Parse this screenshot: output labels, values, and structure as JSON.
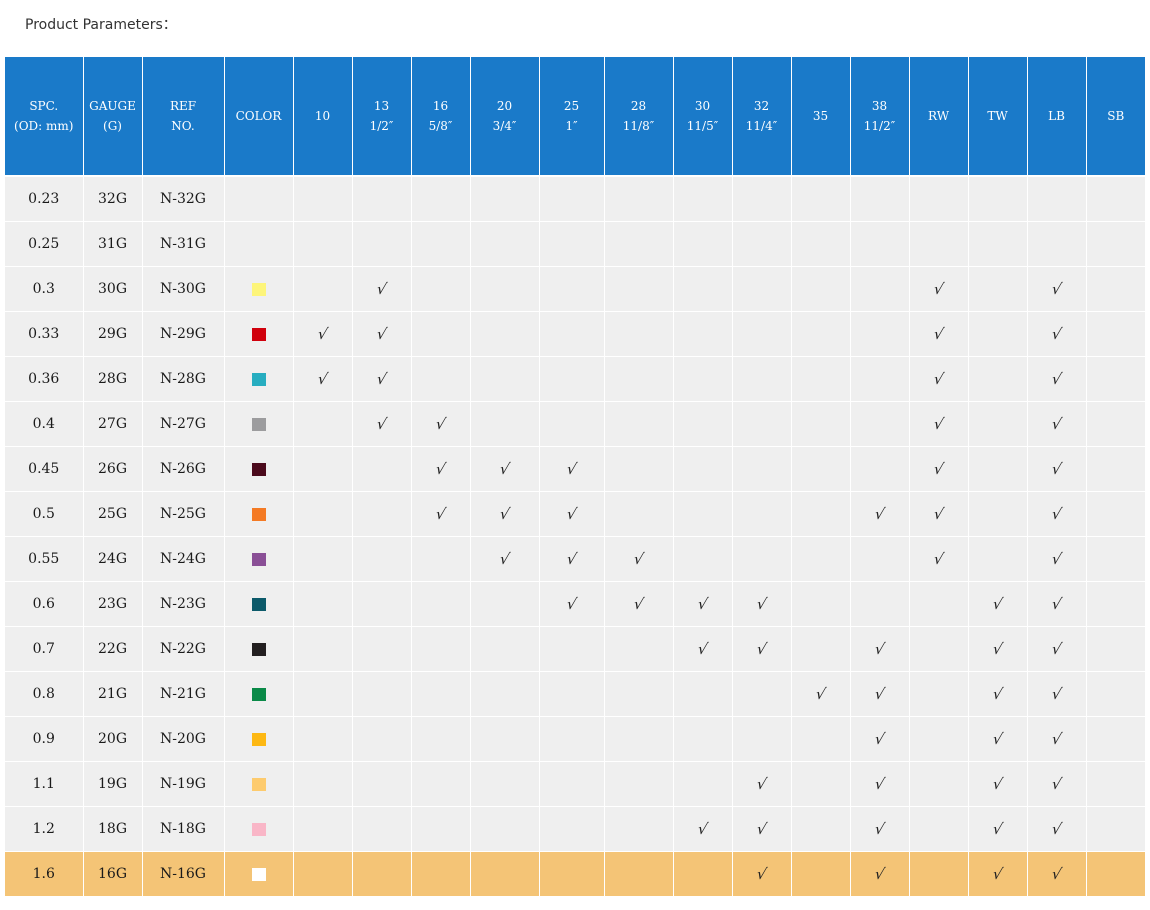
{
  "page_title": "Product Parameters：",
  "columns": [
    {
      "l1": "SPC.",
      "l2": "(OD: mm)"
    },
    {
      "l1": "GAUGE",
      "l2": "(G)"
    },
    {
      "l1": "REF",
      "l2": "NO."
    },
    {
      "l1": "COLOR",
      "l2": ""
    },
    {
      "l1": "10",
      "l2": ""
    },
    {
      "l1": "13",
      "l2": "1/2″"
    },
    {
      "l1": "16",
      "l2": "5/8″"
    },
    {
      "l1": "20",
      "l2": "3/4″"
    },
    {
      "l1": "25",
      "l2": "1″"
    },
    {
      "l1": "28",
      "l2": "11/8″"
    },
    {
      "l1": "30",
      "l2": "11/5″"
    },
    {
      "l1": "32",
      "l2": "11/4″"
    },
    {
      "l1": "35",
      "l2": ""
    },
    {
      "l1": "38",
      "l2": "11/2″"
    },
    {
      "l1": "RW",
      "l2": ""
    },
    {
      "l1": "TW",
      "l2": ""
    },
    {
      "l1": "LB",
      "l2": ""
    },
    {
      "l1": "SB",
      "l2": ""
    }
  ],
  "check_symbol": "√",
  "rows": [
    {
      "od": "0.23",
      "gauge": "32G",
      "ref": "N-32G",
      "color": null,
      "checks": []
    },
    {
      "od": "0.25",
      "gauge": "31G",
      "ref": "N-31G",
      "color": null,
      "checks": []
    },
    {
      "od": "0.3",
      "gauge": "30G",
      "ref": "N-30G",
      "color": "#fdf57a",
      "checks": [
        "13",
        "RW",
        "LB"
      ]
    },
    {
      "od": "0.33",
      "gauge": "29G",
      "ref": "N-29G",
      "color": "#d0000c",
      "checks": [
        "10",
        "13",
        "RW",
        "LB"
      ]
    },
    {
      "od": "0.36",
      "gauge": "28G",
      "ref": "N-28G",
      "color": "#27adc0",
      "checks": [
        "10",
        "13",
        "RW",
        "LB"
      ]
    },
    {
      "od": "0.4",
      "gauge": "27G",
      "ref": "N-27G",
      "color": "#9c9c9e",
      "checks": [
        "13",
        "16",
        "RW",
        "LB"
      ]
    },
    {
      "od": "0.45",
      "gauge": "26G",
      "ref": "N-26G",
      "color": "#4b0a1c",
      "checks": [
        "16",
        "20",
        "25",
        "RW",
        "LB"
      ]
    },
    {
      "od": "0.5",
      "gauge": "25G",
      "ref": "N-25G",
      "color": "#f47a24",
      "checks": [
        "16",
        "20",
        "25",
        "38",
        "RW",
        "LB"
      ]
    },
    {
      "od": "0.55",
      "gauge": "24G",
      "ref": "N-24G",
      "color": "#8a4f96",
      "checks": [
        "20",
        "25",
        "28",
        "RW",
        "LB"
      ]
    },
    {
      "od": "0.6",
      "gauge": "23G",
      "ref": "N-23G",
      "color": "#0c5a6a",
      "checks": [
        "25",
        "28",
        "30",
        "32",
        "TW",
        "LB"
      ]
    },
    {
      "od": "0.7",
      "gauge": "22G",
      "ref": "N-22G",
      "color": "#231f20",
      "checks": [
        "30",
        "32",
        "38",
        "TW",
        "LB"
      ]
    },
    {
      "od": "0.8",
      "gauge": "21G",
      "ref": "N-21G",
      "color": "#0a8a48",
      "checks": [
        "35",
        "38",
        "TW",
        "LB"
      ]
    },
    {
      "od": "0.9",
      "gauge": "20G",
      "ref": "N-20G",
      "color": "#fdb813",
      "checks": [
        "38",
        "TW",
        "LB"
      ]
    },
    {
      "od": "1.1",
      "gauge": "19G",
      "ref": "N-19G",
      "color": "#fdcb6e",
      "checks": [
        "32",
        "38",
        "TW",
        "LB"
      ]
    },
    {
      "od": "1.2",
      "gauge": "18G",
      "ref": "N-18G",
      "color": "#f9b6c7",
      "checks": [
        "30",
        "32",
        "38",
        "TW",
        "LB"
      ]
    },
    {
      "od": "1.6",
      "gauge": "16G",
      "ref": "N-16G",
      "color": "#ffffff",
      "checks": [
        "32",
        "38",
        "TW",
        "LB"
      ],
      "highlight": true
    }
  ],
  "colors": {
    "header_bg": "#1a7ac9",
    "row_bg": "#efefef",
    "highlight_bg": "#f4c476"
  }
}
